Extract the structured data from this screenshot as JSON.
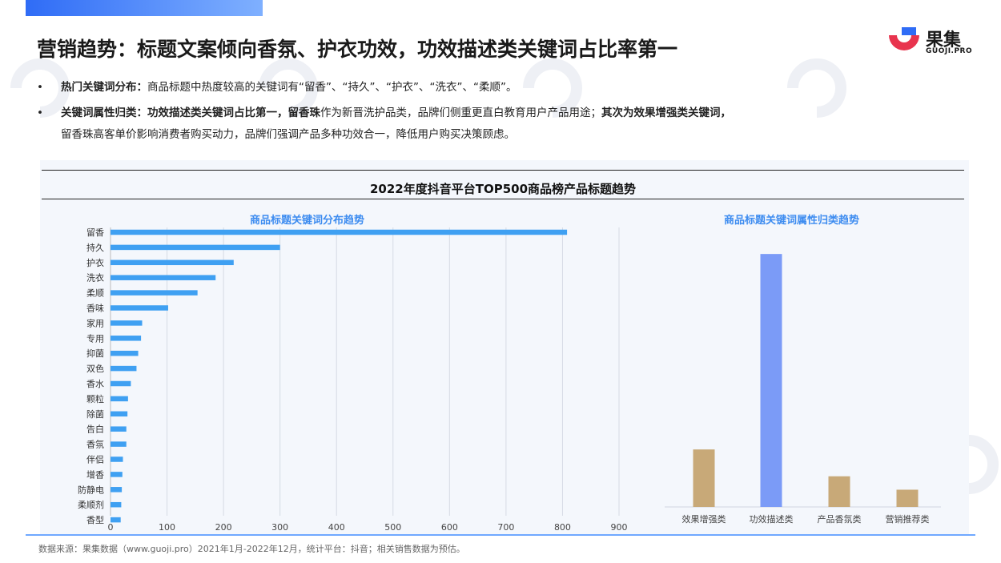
{
  "header": {
    "title": "营销趋势：标题文案倾向香氛、护衣功效，功效描述类关键词占比率第一",
    "logo_cn": "果集",
    "logo_en": "GUOJI.PRO"
  },
  "bullets": [
    {
      "dot": "•",
      "label": "热门关键词分布：",
      "text": "商品标题中热度较高的关键词有“留香”、“持久”、“护衣”、“洗衣”、“柔顺”。"
    },
    {
      "dot": "•",
      "label": "关键词属性归类：",
      "bold1": "功效描述类关键词占比第一，",
      "bold2": "留香珠",
      "text1": "作为新晋洗护品类，品牌们侧重更直白教育用户产品用途；",
      "bold3": "其次为效果增强类关键词，",
      "line2": "留香珠高客单价影响消费者购买动力，品牌们强调产品多种功效合一，降低用户购买决策顾虑。"
    }
  ],
  "section_title": "2022年度抖音平台TOP500商品榜产品标题趋势",
  "footer": "数据来源：果集数据（www.guoji.pro）2021年1月-2022年12月，统计平台：抖音；相关销售数据为预估。",
  "colors": {
    "bar_blue": "#3fa0f2",
    "bar_purple": "#7b9bf7",
    "bar_tan": "#c8a978",
    "accent": "#3d8cf0",
    "logo_red": "#e8344e",
    "logo_blue": "#2f6cf6"
  },
  "chart_data": [
    {
      "type": "bar",
      "orientation": "horizontal",
      "title": "商品标题关键词分布趋势",
      "categories": [
        "留香",
        "持久",
        "护衣",
        "洗衣",
        "柔顺",
        "香味",
        "家用",
        "专用",
        "抑菌",
        "双色",
        "香水",
        "颗粒",
        "除菌",
        "告白",
        "香氛",
        "伴侣",
        "增香",
        "防静电",
        "柔顺剂",
        "香型"
      ],
      "values": [
        808,
        300,
        218,
        186,
        154,
        102,
        56,
        54,
        49,
        46,
        36,
        31,
        30,
        28,
        28,
        22,
        21,
        20,
        19,
        18
      ],
      "xticks": [
        0,
        100,
        200,
        300,
        400,
        500,
        600,
        700,
        800,
        900
      ],
      "xlim": [
        0,
        900
      ],
      "grid": true
    },
    {
      "type": "bar",
      "title": "商品标题关键词属性归类趋势",
      "categories": [
        "效果增强类",
        "功效描述类",
        "产品香氛类",
        "营销推荐类"
      ],
      "values": [
        15,
        66,
        8,
        4.5
      ],
      "ylim": [
        0,
        70
      ],
      "highlight_index": 1
    }
  ]
}
